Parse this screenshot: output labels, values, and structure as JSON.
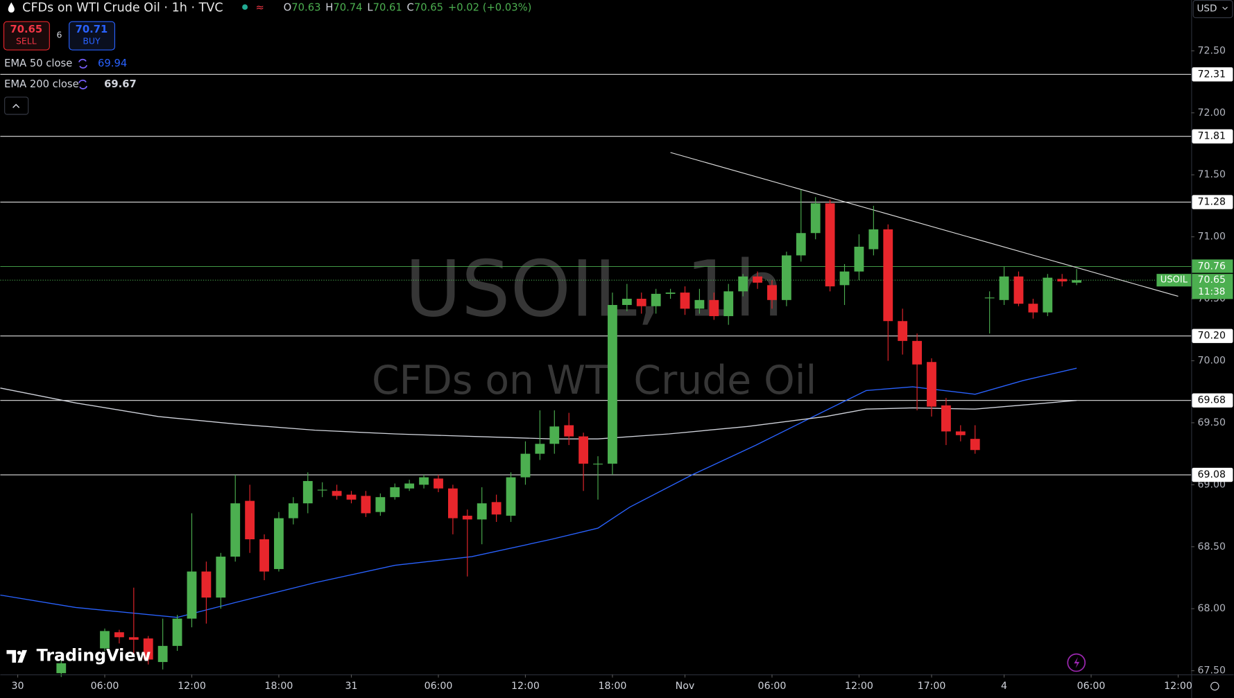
{
  "header": {
    "title": "CFDs on WTI Crude Oil · 1h · TVC",
    "ohlc": [
      {
        "label": "O",
        "value": 70.63
      },
      {
        "label": "H",
        "value": 70.74
      },
      {
        "label": "L",
        "value": 70.61
      },
      {
        "label": "C",
        "value": 70.65
      }
    ],
    "change": "+0.02 (+0.03%)",
    "sell": {
      "price": 70.65,
      "label": "SELL"
    },
    "spread": 6,
    "buy": {
      "price": 70.71,
      "label": "BUY"
    },
    "currency": "USD"
  },
  "chart_data": {
    "type": "candlestick",
    "watermark": [
      "USOIL, 1h",
      "CFDs on WTI Crude Oil"
    ],
    "logo": "TradingView",
    "xlim": [
      -1.2,
      80.9
    ],
    "ylim": [
      67.47,
      72.91
    ],
    "xticks": [
      {
        "value": 0,
        "label": "30"
      },
      {
        "value": 6,
        "label": "06:00"
      },
      {
        "value": 12,
        "label": "12:00"
      },
      {
        "value": 18,
        "label": "18:00"
      },
      {
        "value": 23,
        "label": "31"
      },
      {
        "value": 29,
        "label": "06:00"
      },
      {
        "value": 35,
        "label": "12:00"
      },
      {
        "value": 41,
        "label": "18:00"
      },
      {
        "value": 46,
        "label": "Nov"
      },
      {
        "value": 52,
        "label": "06:00"
      },
      {
        "value": 58,
        "label": "12:00"
      },
      {
        "value": 63,
        "label": "17:00"
      },
      {
        "value": 68,
        "label": "4"
      },
      {
        "value": 74,
        "label": "06:00"
      },
      {
        "value": 80,
        "label": "12:00"
      }
    ],
    "yticks": [
      {
        "value": 67.5,
        "label": "67.50"
      },
      {
        "value": 68,
        "label": "68.00"
      },
      {
        "value": 68.5,
        "label": "68.50"
      },
      {
        "value": 69,
        "label": "69.00"
      },
      {
        "value": 69.5,
        "label": "69.50"
      },
      {
        "value": 70,
        "label": "70.00"
      },
      {
        "value": 70.5,
        "label": "70.50"
      },
      {
        "value": 71,
        "label": "71.00"
      },
      {
        "value": 71.5,
        "label": "71.50"
      },
      {
        "value": 72,
        "label": "72.00"
      },
      {
        "value": 72.5,
        "label": "72.50"
      }
    ],
    "levels": [
      {
        "value": 72.31,
        "label": "72.31"
      },
      {
        "value": 71.81,
        "label": "71.81"
      },
      {
        "value": 71.28,
        "label": "71.28"
      },
      {
        "value": 70.2,
        "label": "70.20"
      },
      {
        "value": 69.68,
        "label": "69.68"
      },
      {
        "value": 69.08,
        "label": "69.08"
      }
    ],
    "high_line": {
      "value": 70.76,
      "color": "#4caf50"
    },
    "current": {
      "name": "USOIL",
      "value": 70.65,
      "countdown": "11:38",
      "color": "#4caf50"
    },
    "trendline": {
      "x": [
        45,
        80
      ],
      "values": [
        71.68,
        70.52
      ]
    },
    "candles": {
      "up_color": "#4caf50",
      "down_color": "#e8262c",
      "x": [
        3,
        6,
        7,
        8,
        9,
        10,
        11,
        12,
        13,
        14,
        15,
        16,
        17,
        18,
        19,
        20,
        21,
        22,
        23,
        24,
        25,
        26,
        27,
        28,
        29,
        30,
        31,
        32,
        33,
        34,
        35,
        36,
        37,
        38,
        39,
        40,
        41,
        42,
        43,
        44,
        45,
        46,
        47,
        48,
        49,
        50,
        51,
        52,
        53,
        54,
        55,
        56,
        57,
        58,
        59,
        60,
        61,
        62,
        63,
        64,
        65,
        66,
        67,
        68,
        69,
        70,
        71,
        72,
        73
      ],
      "open": [
        67.48,
        67.68,
        67.81,
        67.77,
        67.76,
        67.57,
        67.7,
        67.92,
        68.3,
        68.09,
        68.42,
        68.87,
        68.56,
        68.32,
        68.73,
        68.85,
        68.96,
        68.95,
        68.92,
        68.91,
        68.78,
        68.9,
        68.97,
        69.0,
        69.05,
        68.97,
        68.75,
        68.72,
        68.86,
        68.75,
        69.06,
        69.25,
        69.33,
        69.48,
        69.39,
        69.17,
        69.17,
        70.45,
        70.5,
        70.44,
        70.54,
        70.55,
        70.42,
        70.49,
        70.36,
        70.56,
        70.68,
        70.61,
        70.49,
        70.85,
        71.03,
        71.27,
        70.61,
        70.72,
        70.9,
        71.06,
        70.32,
        70.16,
        69.99,
        69.64,
        69.43,
        69.37,
        70.51,
        70.49,
        70.68,
        70.46,
        70.39,
        70.66,
        70.63
      ],
      "high": [
        67.6,
        67.84,
        67.83,
        68.17,
        67.78,
        67.92,
        67.95,
        68.77,
        68.38,
        68.45,
        69.08,
        69.0,
        68.6,
        68.78,
        68.9,
        69.1,
        69.02,
        69.0,
        68.95,
        68.95,
        68.93,
        69.01,
        69.04,
        69.08,
        69.08,
        69.0,
        68.8,
        68.98,
        68.92,
        69.1,
        69.35,
        69.6,
        69.6,
        69.58,
        69.42,
        69.23,
        70.55,
        70.62,
        70.55,
        70.58,
        70.58,
        70.6,
        70.58,
        70.55,
        70.62,
        70.7,
        70.72,
        70.65,
        70.88,
        71.38,
        71.32,
        71.3,
        70.78,
        71.02,
        71.25,
        71.1,
        70.42,
        70.22,
        70.02,
        69.7,
        69.48,
        69.48,
        70.56,
        70.76,
        70.72,
        70.5,
        70.7,
        70.7,
        70.74
      ],
      "low": [
        67.45,
        67.66,
        67.72,
        67.62,
        67.55,
        67.51,
        67.66,
        67.85,
        67.88,
        68.0,
        68.38,
        68.45,
        68.23,
        68.3,
        68.68,
        68.77,
        68.9,
        68.88,
        68.85,
        68.74,
        68.75,
        68.88,
        68.95,
        68.97,
        68.94,
        68.6,
        68.26,
        68.52,
        68.7,
        68.7,
        69.0,
        69.2,
        69.25,
        69.32,
        68.95,
        68.88,
        69.08,
        70.4,
        70.38,
        70.38,
        70.5,
        70.37,
        70.38,
        70.33,
        70.29,
        70.52,
        70.58,
        70.42,
        70.44,
        70.8,
        70.98,
        70.56,
        70.45,
        70.65,
        70.85,
        70.0,
        70.05,
        69.6,
        69.55,
        69.32,
        69.35,
        69.25,
        70.22,
        70.45,
        70.44,
        70.34,
        70.36,
        70.6,
        70.61
      ],
      "close": [
        67.56,
        67.82,
        67.77,
        67.75,
        67.59,
        67.7,
        67.92,
        68.3,
        68.09,
        68.42,
        68.85,
        68.56,
        68.3,
        68.73,
        68.85,
        69.03,
        68.96,
        68.91,
        68.88,
        68.77,
        68.9,
        68.98,
        69.01,
        69.06,
        68.97,
        68.73,
        68.72,
        68.85,
        68.76,
        69.06,
        69.25,
        69.33,
        69.47,
        69.39,
        69.17,
        69.17,
        70.45,
        70.5,
        70.44,
        70.54,
        70.55,
        70.42,
        70.49,
        70.36,
        70.56,
        70.68,
        70.63,
        70.49,
        70.85,
        71.03,
        71.27,
        70.6,
        70.72,
        70.92,
        71.06,
        70.32,
        70.16,
        69.97,
        69.63,
        69.43,
        69.4,
        69.28,
        70.51,
        70.68,
        70.46,
        70.39,
        70.67,
        70.64,
        70.65
      ]
    },
    "series": [
      {
        "name": "EMA 50 close",
        "color": "#2962ff",
        "last": 69.94,
        "x": [
          -1.2,
          4,
          11,
          15,
          20.5,
          26,
          31.3,
          36.8,
          40,
          42.2,
          46.5,
          50.9,
          55.2,
          58.5,
          61.7,
          66,
          69.3,
          73
        ],
        "values": [
          68.11,
          68.01,
          67.93,
          68.05,
          68.21,
          68.35,
          68.42,
          68.56,
          68.65,
          68.82,
          69.08,
          69.32,
          69.57,
          69.76,
          69.79,
          69.73,
          69.84,
          69.94
        ]
      },
      {
        "name": "EMA 200 close",
        "color": "#d1d4dc",
        "last": 69.67,
        "x": [
          -1.2,
          4,
          9.7,
          15,
          20.5,
          26,
          31.3,
          36.8,
          40,
          44.9,
          50.3,
          55.7,
          58.5,
          61.7,
          66,
          73
        ],
        "values": [
          69.78,
          69.66,
          69.55,
          69.49,
          69.44,
          69.41,
          69.39,
          69.37,
          69.37,
          69.41,
          69.47,
          69.55,
          69.61,
          69.62,
          69.61,
          69.68
        ]
      }
    ]
  }
}
